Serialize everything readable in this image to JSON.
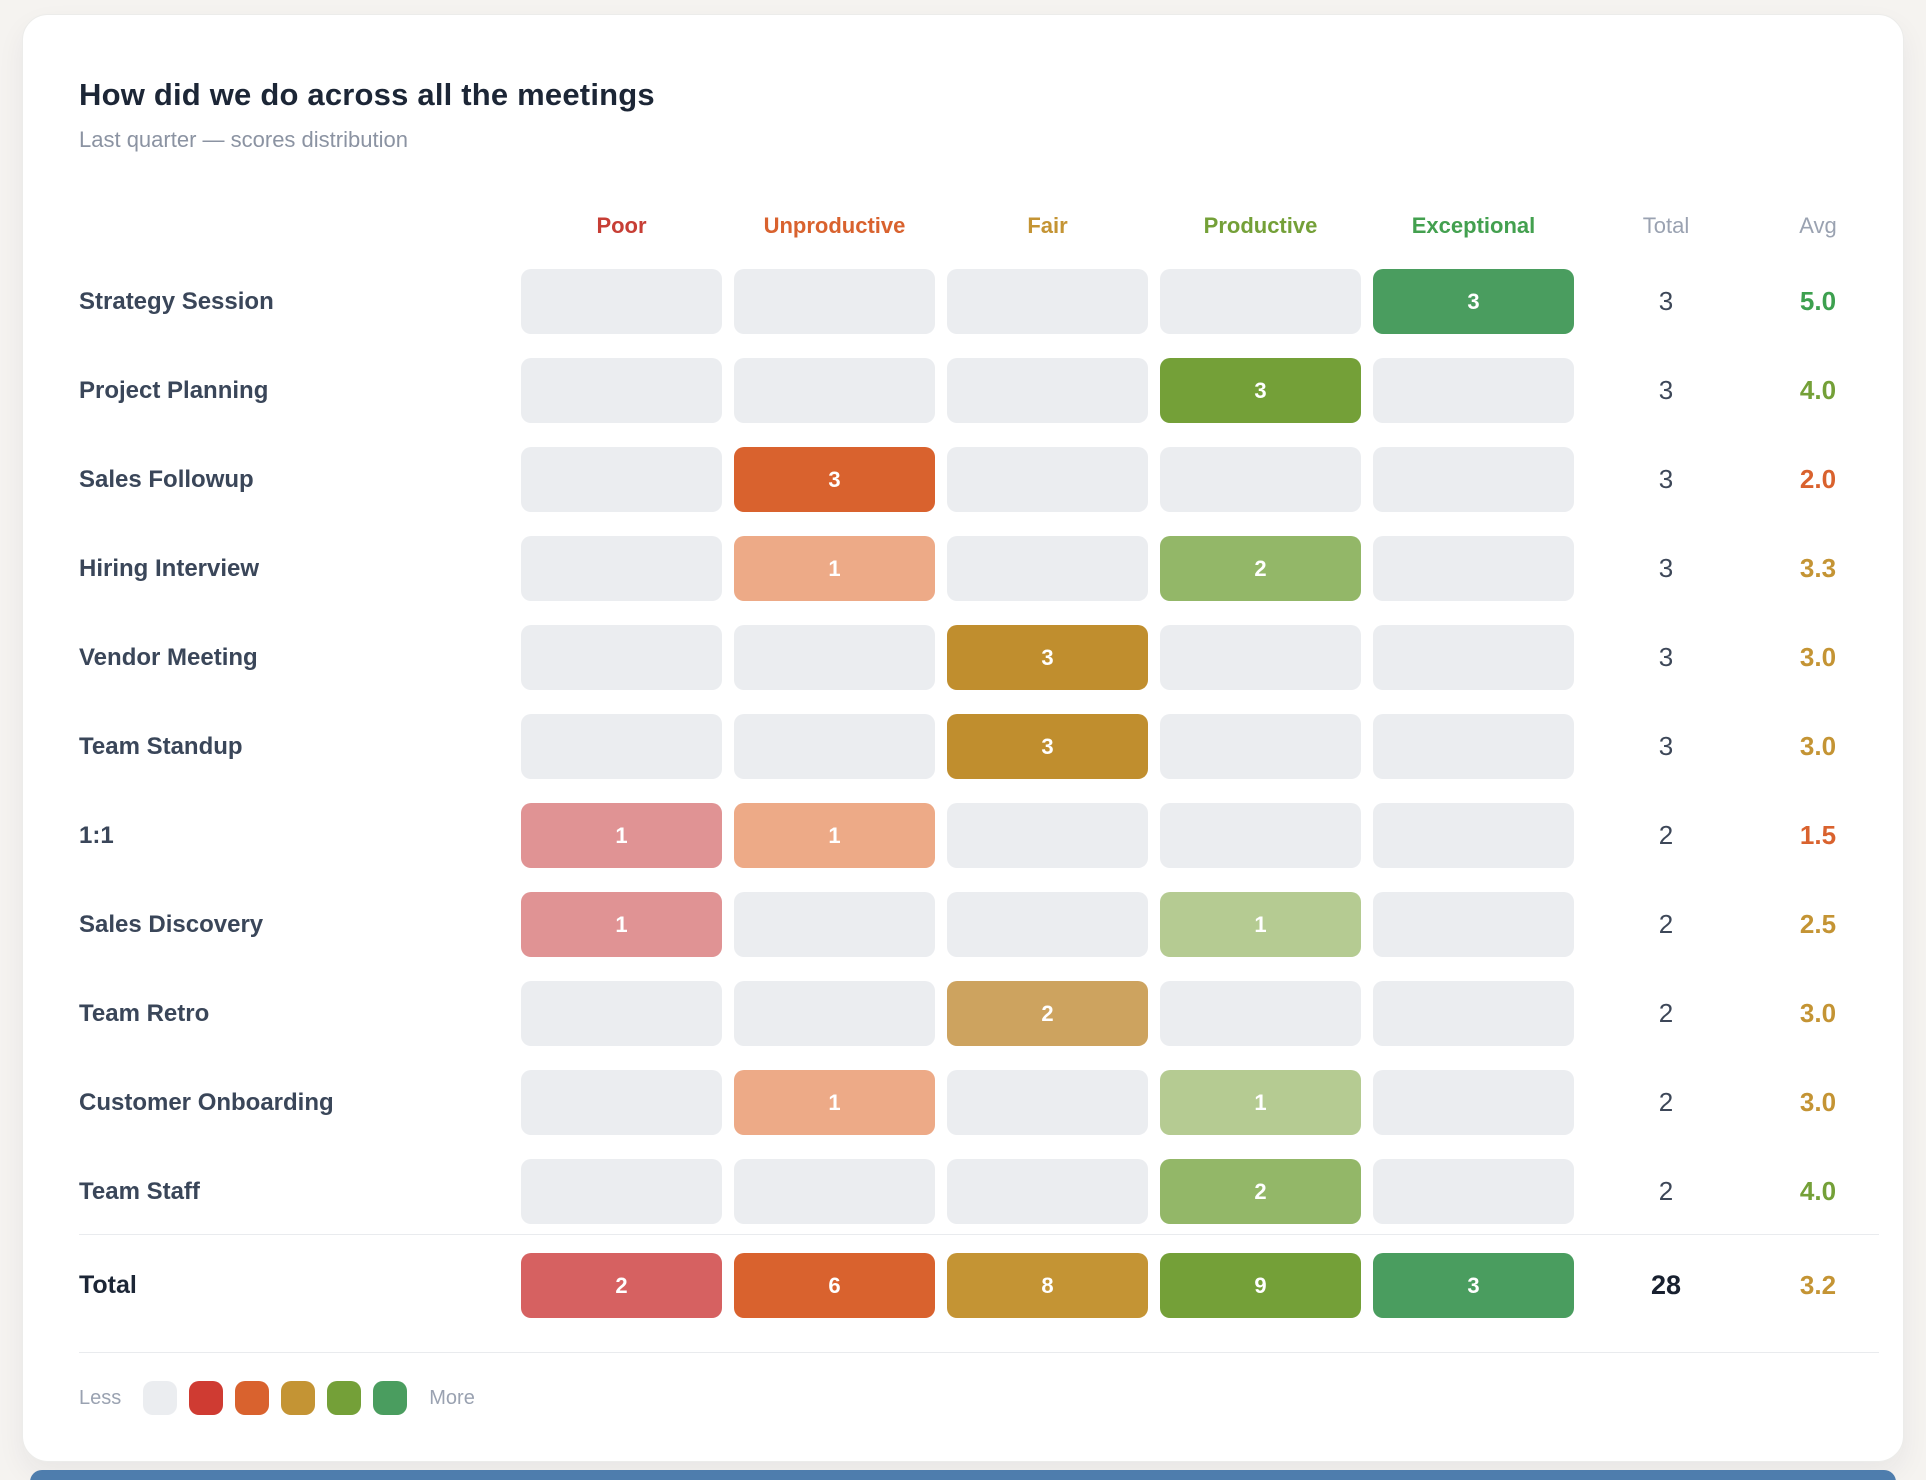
{
  "chart_data": {
    "type": "heatmap",
    "title": "How did we do across all the meetings",
    "subtitle": "Last quarter — scores distribution",
    "categories": [
      "Poor",
      "Unproductive",
      "Fair",
      "Productive",
      "Exceptional"
    ],
    "category_colors": [
      "#c73e35",
      "#d9622e",
      "#c49434",
      "#74a038",
      "#43a04f"
    ],
    "summary_columns": [
      {
        "label": "Total",
        "color": "#9aa2b1"
      },
      {
        "label": "Avg",
        "color": "#9aa2b1"
      }
    ],
    "empty_cell_color": "#ebedf0",
    "rows": [
      {
        "label": "Strategy Session",
        "cells": [
          null,
          null,
          null,
          null,
          {
            "v": 3,
            "bg": "#4a9d5f"
          }
        ],
        "total": "3",
        "avg": "5.0",
        "avg_color": "#3da04f"
      },
      {
        "label": "Project Planning",
        "cells": [
          null,
          null,
          null,
          {
            "v": 3,
            "bg": "#74a038"
          },
          null
        ],
        "total": "3",
        "avg": "4.0",
        "avg_color": "#74a038"
      },
      {
        "label": "Sales Followup",
        "cells": [
          null,
          {
            "v": 3,
            "bg": "#d9622e"
          },
          null,
          null,
          null
        ],
        "total": "3",
        "avg": "2.0",
        "avg_color": "#d9622e"
      },
      {
        "label": "Hiring Interview",
        "cells": [
          null,
          {
            "v": 1,
            "bg": "#edaa87"
          },
          null,
          {
            "v": 2,
            "bg": "#93b768"
          },
          null
        ],
        "total": "3",
        "avg": "3.3",
        "avg_color": "#c49434"
      },
      {
        "label": "Vendor Meeting",
        "cells": [
          null,
          null,
          {
            "v": 3,
            "bg": "#c08e2e"
          },
          null,
          null
        ],
        "total": "3",
        "avg": "3.0",
        "avg_color": "#c49434"
      },
      {
        "label": "Team Standup",
        "cells": [
          null,
          null,
          {
            "v": 3,
            "bg": "#c08e2e"
          },
          null,
          null
        ],
        "total": "3",
        "avg": "3.0",
        "avg_color": "#c49434"
      },
      {
        "label": "1:1",
        "cells": [
          {
            "v": 1,
            "bg": "#e09394"
          },
          {
            "v": 1,
            "bg": "#edaa87"
          },
          null,
          null,
          null
        ],
        "total": "2",
        "avg": "1.5",
        "avg_color": "#d9622e"
      },
      {
        "label": "Sales Discovery",
        "cells": [
          {
            "v": 1,
            "bg": "#e09394"
          },
          null,
          null,
          {
            "v": 1,
            "bg": "#b5cb92"
          },
          null
        ],
        "total": "2",
        "avg": "2.5",
        "avg_color": "#c49434"
      },
      {
        "label": "Team Retro",
        "cells": [
          null,
          null,
          {
            "v": 2,
            "bg": "#cda35f"
          },
          null,
          null
        ],
        "total": "2",
        "avg": "3.0",
        "avg_color": "#c49434"
      },
      {
        "label": "Customer Onboarding",
        "cells": [
          null,
          {
            "v": 1,
            "bg": "#edaa87"
          },
          null,
          {
            "v": 1,
            "bg": "#b5cb92"
          },
          null
        ],
        "total": "2",
        "avg": "3.0",
        "avg_color": "#c49434"
      },
      {
        "label": "Team Staff",
        "cells": [
          null,
          null,
          null,
          {
            "v": 2,
            "bg": "#93b768"
          },
          null
        ],
        "total": "2",
        "avg": "4.0",
        "avg_color": "#74a038"
      }
    ],
    "totals_row": {
      "label": "Total",
      "cells": [
        {
          "v": 2,
          "bg": "#d66161"
        },
        {
          "v": 6,
          "bg": "#d9622e"
        },
        {
          "v": 8,
          "bg": "#c49434"
        },
        {
          "v": 9,
          "bg": "#74a038"
        },
        {
          "v": 3,
          "bg": "#4a9d5f"
        }
      ],
      "total": "28",
      "avg": "3.2",
      "avg_color": "#c49434"
    }
  },
  "legend": {
    "less_label": "Less",
    "more_label": "More",
    "swatches": [
      "#ebedf0",
      "#cf3b32",
      "#d9622e",
      "#c49434",
      "#74a038",
      "#4a9d5f"
    ]
  }
}
